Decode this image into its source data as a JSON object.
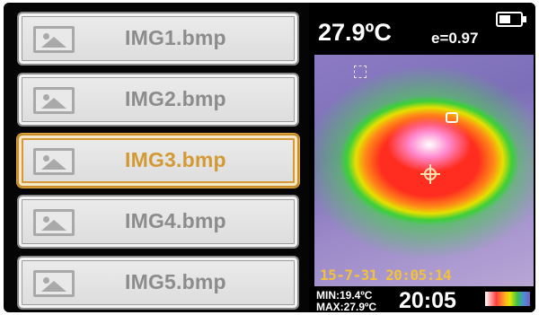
{
  "file_list": {
    "items": [
      {
        "label": "IMG1.bmp",
        "selected": false
      },
      {
        "label": "IMG2.bmp",
        "selected": false
      },
      {
        "label": "IMG3.bmp",
        "selected": true
      },
      {
        "label": "IMG4.bmp",
        "selected": false
      },
      {
        "label": "IMG5.bmp",
        "selected": false
      }
    ],
    "item_icon": "image-icon"
  },
  "thermal": {
    "temperature": "27.9ºC",
    "emissivity": "e=0.97",
    "timestamp": "15-7-31 20:05:14",
    "min_temp": "MIN:19.4ºC",
    "max_temp": "MAX:27.9ºC",
    "clock": "20:05",
    "palette": "iron-rainbow",
    "battery_icon": "battery-icon"
  },
  "colors": {
    "selected_accent": "#d39a34",
    "item_text": "#8c8c8c",
    "timestamp_text": "#f2c23a"
  }
}
